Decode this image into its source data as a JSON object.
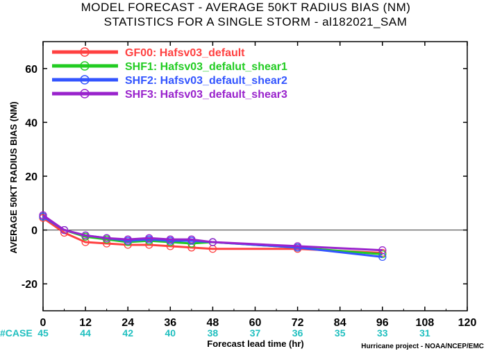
{
  "chart_data": {
    "type": "line",
    "title": "MODEL FORECAST - AVERAGE 50KT RADIUS BIAS (NM)",
    "subtitle": "STATISTICS FOR A SINGLE STORM - al182021_SAM",
    "xlabel": "Forecast lead time (hr)",
    "ylabel": "AVERAGE 50KT RADIUS BIAS (NM)",
    "xlim": [
      0,
      120
    ],
    "ylim": [
      -30,
      70
    ],
    "xticks": [
      0,
      12,
      24,
      36,
      48,
      60,
      72,
      84,
      96,
      108,
      120
    ],
    "yticks": [
      -20,
      0,
      20,
      40,
      60
    ],
    "zero_line": true,
    "grid": false,
    "legend_position": "top-left",
    "case_label": "#CASE",
    "case_counts": [
      {
        "x": 0,
        "n": "45"
      },
      {
        "x": 12,
        "n": "44"
      },
      {
        "x": 24,
        "n": "42"
      },
      {
        "x": 36,
        "n": "40"
      },
      {
        "x": 48,
        "n": "38"
      },
      {
        "x": 60,
        "n": "37"
      },
      {
        "x": 72,
        "n": "36"
      },
      {
        "x": 84,
        "n": "35"
      },
      {
        "x": 96,
        "n": "33"
      },
      {
        "x": 108,
        "n": "31"
      }
    ],
    "credit": "Hurricane project - NOAA/NCEP/EMC",
    "series": [
      {
        "name": "GF00: Hafsv03_default",
        "color": "#ff4040",
        "x": [
          0,
          6,
          12,
          18,
          24,
          30,
          36,
          42,
          48,
          72,
          96
        ],
        "y": [
          4.5,
          -1,
          -4.5,
          -5,
          -5.5,
          -5.5,
          -6,
          -6.5,
          -7,
          -7,
          -8.5
        ]
      },
      {
        "name": "SHF1: Hafsv03_defalut_shear1",
        "color": "#22cc22",
        "x": [
          0,
          6,
          12,
          18,
          24,
          30,
          36,
          42,
          48,
          72,
          96
        ],
        "y": [
          5,
          0,
          -2.5,
          -3.5,
          -4.5,
          -4,
          -4.5,
          -5,
          -4.5,
          -6.5,
          -9
        ]
      },
      {
        "name": "SHF2: Hafsv03_default_shear2",
        "color": "#3355ff",
        "x": [
          0,
          6,
          12,
          18,
          24,
          30,
          36,
          42,
          48,
          72,
          96
        ],
        "y": [
          5,
          0,
          -2,
          -3,
          -4,
          -3.5,
          -4,
          -4,
          -4.5,
          -6.5,
          -10
        ]
      },
      {
        "name": "SHF3: Hafsv03_default_shear3",
        "color": "#9922cc",
        "x": [
          0,
          6,
          12,
          18,
          24,
          30,
          36,
          42,
          48,
          72,
          96
        ],
        "y": [
          5.5,
          0,
          -2,
          -3,
          -3.5,
          -3,
          -3.5,
          -3.5,
          -4.5,
          -6,
          -7.5
        ]
      }
    ]
  }
}
